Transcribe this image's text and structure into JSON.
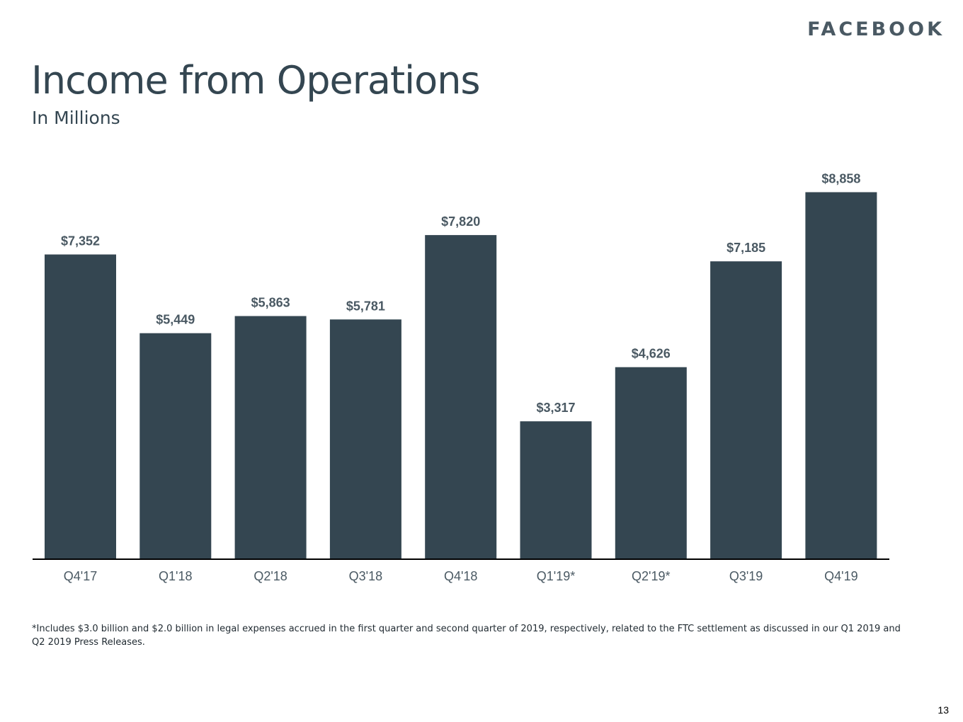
{
  "header": {
    "logo_text": "FACEBOOK",
    "title": "Income from Operations",
    "subtitle": "In Millions"
  },
  "chart_data": {
    "type": "bar",
    "categories": [
      "Q4'17",
      "Q1'18",
      "Q2'18",
      "Q3'18",
      "Q4'18",
      "Q1'19*",
      "Q2'19*",
      "Q3'19",
      "Q4'19"
    ],
    "values": [
      7352,
      5449,
      5863,
      5781,
      7820,
      3317,
      4626,
      7185,
      8858
    ],
    "data_labels": [
      "$7,352",
      "$5,449",
      "$5,863",
      "$5,781",
      "$7,820",
      "$3,317",
      "$4,626",
      "$7,185",
      "$8,858"
    ],
    "title": "Income from Operations",
    "subtitle": "In Millions",
    "xlabel": "",
    "ylabel": "",
    "ylim": [
      0,
      9000
    ],
    "grid": false,
    "legend": "none",
    "bar_color": "#344651"
  },
  "footnote": "*Includes $3.0 billion and $2.0 billion in legal expenses accrued in the first quarter and second quarter of 2019, respectively, related to the FTC settlement as discussed in our Q1 2019 and Q2 2019 Press Releases.",
  "page_number": "13"
}
